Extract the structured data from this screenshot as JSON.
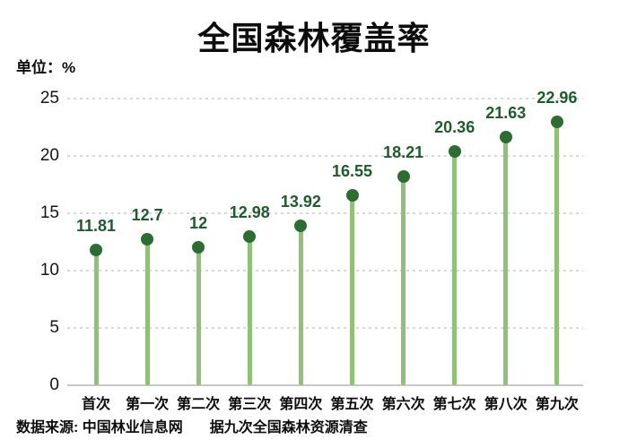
{
  "page": {
    "title": "全国森林覆盖率",
    "unit_label": "单位：%",
    "source_prefix": "数据来源: 中国林业信息网",
    "source_note": "据九次全国森林资源清查"
  },
  "colors": {
    "stem": "#8ec377",
    "dot": "#2b6e2f",
    "data_label": "#1d5c2b",
    "grid": "#d8d8d8",
    "axis": "#c8c8c8",
    "text": "#0d0d0d",
    "background": "#ffffff"
  },
  "chart_data": {
    "type": "bar",
    "style": "lollipop",
    "title": "全国森林覆盖率",
    "xlabel": "",
    "ylabel": "单位：%",
    "categories": [
      "首次",
      "第一次",
      "第二次",
      "第三次",
      "第四次",
      "第五次",
      "第六次",
      "第七次",
      "第八次",
      "第九次"
    ],
    "values": [
      11.81,
      12.7,
      12,
      12.98,
      13.92,
      16.55,
      18.21,
      20.36,
      21.63,
      22.96
    ],
    "value_labels": [
      "11.81",
      "12.7",
      "12",
      "12.98",
      "13.92",
      "16.55",
      "18.21",
      "20.36",
      "21.63",
      "22.96"
    ],
    "ylim": [
      0,
      25
    ],
    "yticks": [
      0,
      5,
      10,
      15,
      20,
      25
    ],
    "grid": "horizontal-dashed",
    "legend": "none"
  }
}
